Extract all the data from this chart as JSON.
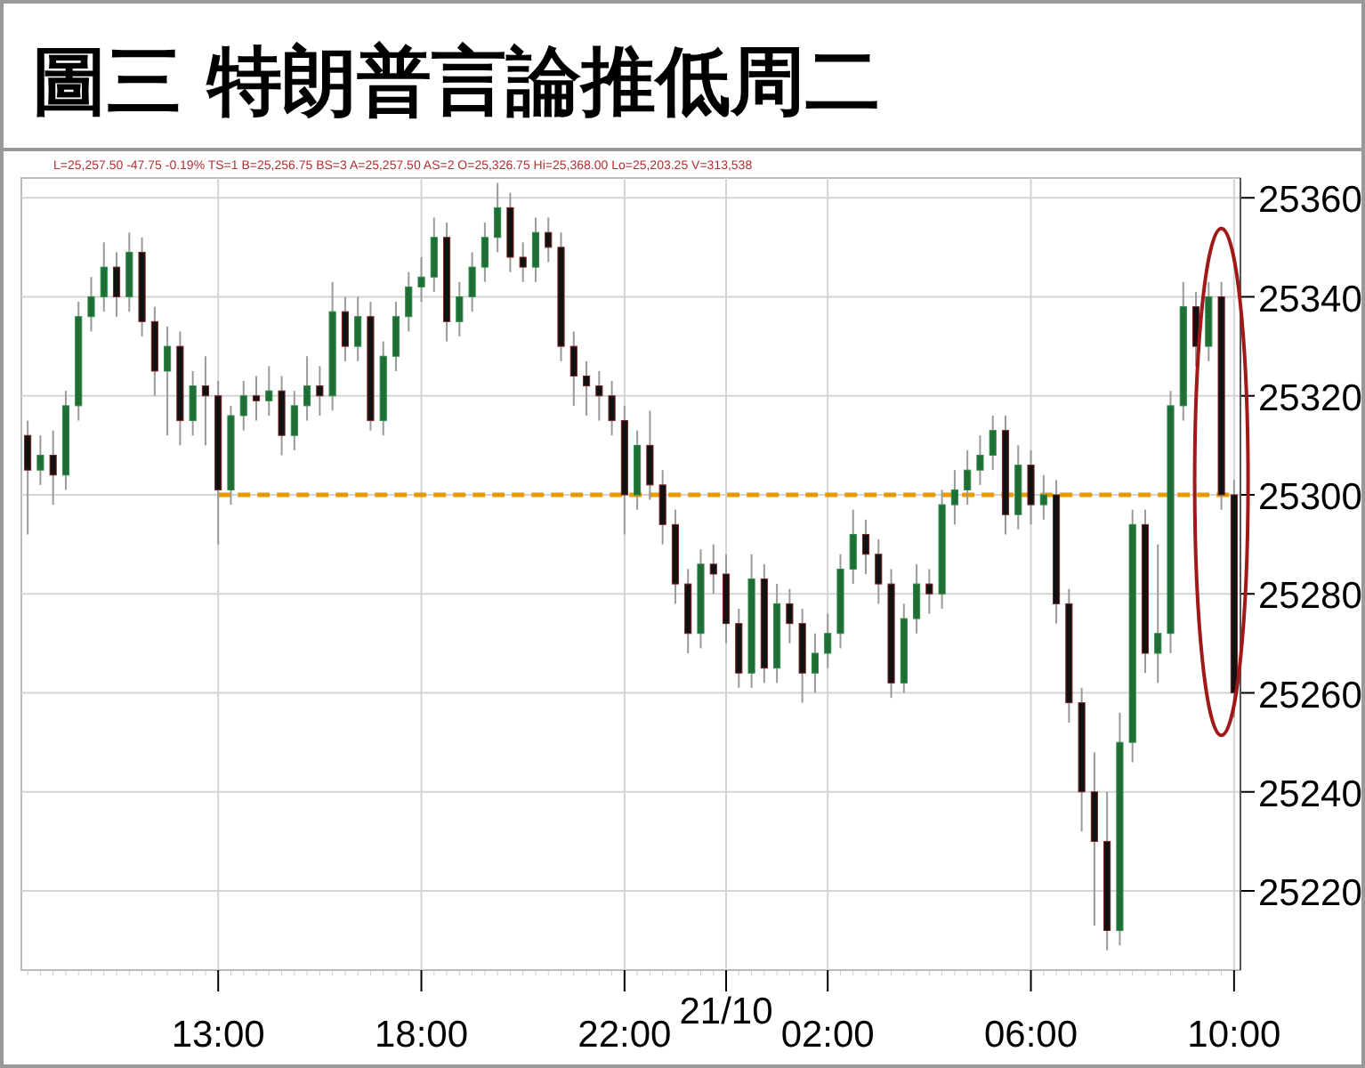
{
  "chart_data": {
    "type": "candlestick",
    "title": "圖三 特朗普言論推低周二",
    "annotations": [
      "L=25,257.50 -47.75 -0.19% TS=1 B=25,256.75 BS=3 A=25,257.50 AS=2 O=25,326.75 Hi=25,368.00 Lo=25,203.25 V=313,538"
    ],
    "categories": [
      null,
      null,
      null,
      null,
      null,
      null,
      null,
      null,
      null,
      null,
      null,
      null,
      null,
      null,
      null,
      "13:00",
      null,
      null,
      null,
      null,
      null,
      null,
      null,
      null,
      null,
      null,
      null,
      null,
      null,
      null,
      null,
      "18:00",
      null,
      null,
      null,
      null,
      null,
      null,
      null,
      null,
      null,
      null,
      null,
      null,
      null,
      null,
      null,
      "22:00",
      null,
      null,
      null,
      null,
      null,
      null,
      null,
      "21/10",
      null,
      null,
      null,
      null,
      null,
      null,
      null,
      "02:00",
      null,
      null,
      null,
      null,
      null,
      null,
      null,
      null,
      null,
      null,
      null,
      null,
      null,
      null,
      null,
      "06:00",
      null,
      null,
      null,
      null,
      null,
      null,
      null,
      null,
      null,
      null,
      null,
      null,
      null,
      null,
      null,
      "10:00"
    ],
    "ylim": [
      25204,
      25364
    ],
    "yticks": [
      25220,
      25240,
      25260,
      25280,
      25300,
      25320,
      25340,
      25360
    ],
    "grid": true,
    "ohlc": [
      [
        25312,
        25315,
        25292,
        25305
      ],
      [
        25305,
        25312,
        25302,
        25308
      ],
      [
        25308,
        25313,
        25298,
        25304
      ],
      [
        25304,
        25321,
        25301,
        25318
      ],
      [
        25318,
        25339,
        25315,
        25336
      ],
      [
        25336,
        25344,
        25333,
        25340
      ],
      [
        25340,
        25351,
        25337,
        25346
      ],
      [
        25346,
        25349,
        25336,
        25340
      ],
      [
        25340,
        25353,
        25337,
        25349
      ],
      [
        25349,
        25352,
        25332,
        25335
      ],
      [
        25335,
        25338,
        25320,
        25325
      ],
      [
        25325,
        25334,
        25312,
        25330
      ],
      [
        25330,
        25333,
        25310,
        25315
      ],
      [
        25315,
        25325,
        25312,
        25322
      ],
      [
        25322,
        25328,
        25310,
        25320
      ],
      [
        25320,
        25323,
        25290,
        25301
      ],
      [
        25301,
        25318,
        25298,
        25316
      ],
      [
        25316,
        25323,
        25313,
        25320
      ],
      [
        25320,
        25324,
        25315,
        25319
      ],
      [
        25319,
        25326,
        25316,
        25321
      ],
      [
        25321,
        25324,
        25308,
        25312
      ],
      [
        25312,
        25321,
        25309,
        25318
      ],
      [
        25318,
        25328,
        25315,
        25322
      ],
      [
        25322,
        25326,
        25316,
        25320
      ],
      [
        25320,
        25343,
        25317,
        25337
      ],
      [
        25337,
        25340,
        25327,
        25330
      ],
      [
        25330,
        25340,
        25327,
        25336
      ],
      [
        25336,
        25339,
        25313,
        25315
      ],
      [
        25315,
        25331,
        25312,
        25328
      ],
      [
        25328,
        25339,
        25325,
        25336
      ],
      [
        25336,
        25345,
        25333,
        25342
      ],
      [
        25342,
        25348,
        25339,
        25344
      ],
      [
        25344,
        25356,
        25341,
        25352
      ],
      [
        25352,
        25355,
        25331,
        25335
      ],
      [
        25335,
        25343,
        25332,
        25340
      ],
      [
        25340,
        25349,
        25337,
        25346
      ],
      [
        25346,
        25355,
        25343,
        25352
      ],
      [
        25352,
        25363,
        25349,
        25358
      ],
      [
        25358,
        25361,
        25345,
        25348
      ],
      [
        25348,
        25351,
        25343,
        25346
      ],
      [
        25346,
        25356,
        25343,
        25353
      ],
      [
        25353,
        25356,
        25347,
        25350
      ],
      [
        25350,
        25353,
        25327,
        25330
      ],
      [
        25330,
        25333,
        25318,
        25324
      ],
      [
        25324,
        25327,
        25316,
        25322
      ],
      [
        25322,
        25325,
        25315,
        25320
      ],
      [
        25320,
        25323,
        25312,
        25315
      ],
      [
        25315,
        25318,
        25292,
        25300
      ],
      [
        25300,
        25313,
        25297,
        25310
      ],
      [
        25310,
        25317,
        25299,
        25302
      ],
      [
        25302,
        25305,
        25290,
        25294
      ],
      [
        25294,
        25297,
        25278,
        25282
      ],
      [
        25282,
        25285,
        25268,
        25272
      ],
      [
        25272,
        25289,
        25269,
        25286
      ],
      [
        25286,
        25290,
        25280,
        25284
      ],
      [
        25284,
        25288,
        25270,
        25274
      ],
      [
        25274,
        25277,
        25261,
        25264
      ],
      [
        25264,
        25288,
        25261,
        25283
      ],
      [
        25283,
        25286,
        25262,
        25265
      ],
      [
        25265,
        25282,
        25262,
        25278
      ],
      [
        25278,
        25281,
        25270,
        25274
      ],
      [
        25274,
        25277,
        25258,
        25264
      ],
      [
        25264,
        25272,
        25260,
        25268
      ],
      [
        25268,
        25276,
        25265,
        25272
      ],
      [
        25272,
        25288,
        25269,
        25285
      ],
      [
        25285,
        25297,
        25282,
        25292
      ],
      [
        25292,
        25295,
        25284,
        25288
      ],
      [
        25288,
        25291,
        25278,
        25282
      ],
      [
        25282,
        25285,
        25259,
        25262
      ],
      [
        25262,
        25278,
        25260,
        25275
      ],
      [
        25275,
        25286,
        25272,
        25282
      ],
      [
        25282,
        25285,
        25276,
        25280
      ],
      [
        25280,
        25301,
        25277,
        25298
      ],
      [
        25298,
        25305,
        25294,
        25301
      ],
      [
        25301,
        25309,
        25298,
        25305
      ],
      [
        25305,
        25312,
        25302,
        25308
      ],
      [
        25308,
        25316,
        25305,
        25313
      ],
      [
        25313,
        25316,
        25292,
        25296
      ],
      [
        25296,
        25310,
        25293,
        25306
      ],
      [
        25306,
        25309,
        25294,
        25298
      ],
      [
        25298,
        25304,
        25295,
        25300
      ],
      [
        25300,
        25303,
        25274,
        25278
      ],
      [
        25278,
        25281,
        25254,
        25258
      ],
      [
        25258,
        25261,
        25232,
        25240
      ],
      [
        25240,
        25248,
        25213,
        25230
      ],
      [
        25230,
        25240,
        25208,
        25212
      ],
      [
        25212,
        25256,
        25209,
        25250
      ],
      [
        25250,
        25297,
        25246,
        25294
      ],
      [
        25294,
        25297,
        25264,
        25268
      ],
      [
        25268,
        25290,
        25262,
        25272
      ],
      [
        25272,
        25321,
        25268,
        25318
      ],
      [
        25318,
        25343,
        25315,
        25338
      ],
      [
        25338,
        25341,
        25326,
        25330
      ],
      [
        25330,
        25343,
        25327,
        25340
      ],
      [
        25340,
        25343,
        25297,
        25300
      ],
      [
        25300,
        25303,
        25255,
        25260
      ]
    ],
    "series": [
      {
        "type": "line",
        "values": [
          null,
          null,
          null,
          null,
          null,
          null,
          null,
          null,
          null,
          null,
          null,
          null,
          null,
          null,
          null,
          25300,
          25300,
          25300,
          25300,
          25300,
          25300,
          25300,
          25300,
          25300,
          25300,
          25300,
          25300,
          25300,
          25300,
          25300,
          25300,
          25300,
          25300,
          25300,
          25300,
          25300,
          25300,
          25300,
          25300,
          25300,
          25300,
          25300,
          25300,
          25300,
          25300,
          25300,
          25300,
          25300,
          25300,
          25300,
          25300,
          25300,
          25300,
          25300,
          25300,
          25300,
          25300,
          25300,
          25300,
          25300,
          25300,
          25300,
          25300,
          25300,
          25300,
          25300,
          25300,
          25300,
          25300,
          25300,
          25300,
          25300,
          25300,
          25300,
          25300,
          25300,
          25300,
          25300,
          25300,
          25300,
          25300,
          25300,
          25300,
          25300,
          25300,
          25300,
          25300,
          25300,
          25300,
          25300,
          25300,
          25300,
          25300,
          25300,
          25300,
          25300
        ],
        "color": "#e89a00",
        "line_style": "dashed"
      }
    ]
  }
}
